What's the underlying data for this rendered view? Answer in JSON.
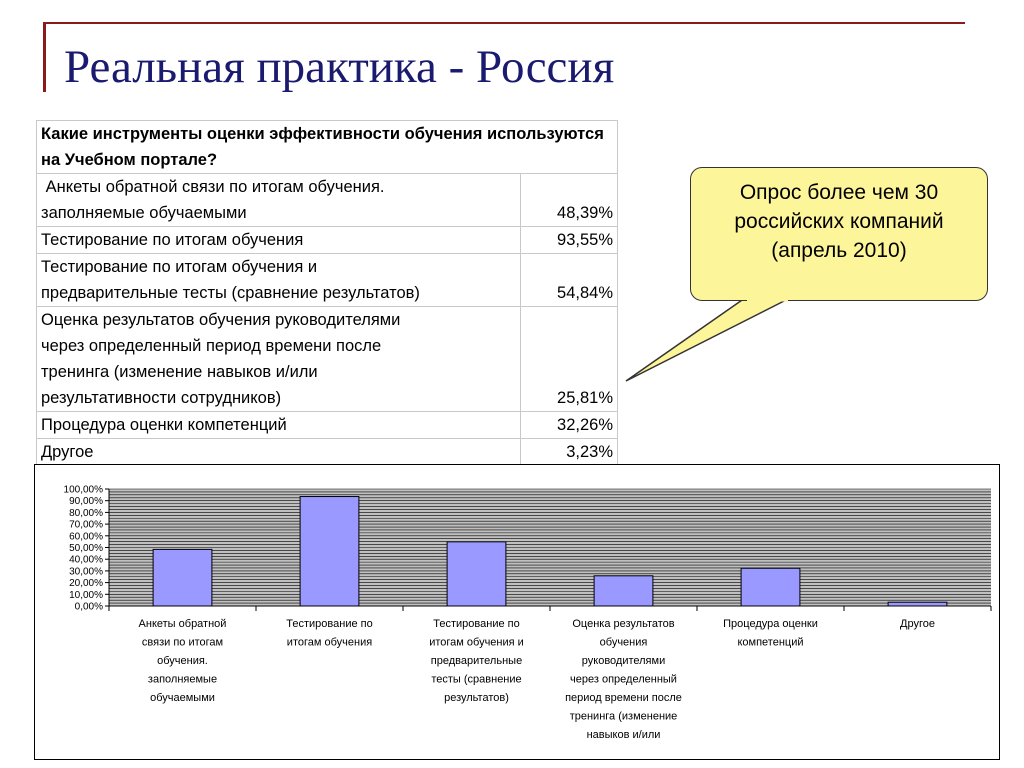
{
  "slide": {
    "title": "Реальная практика - Россия"
  },
  "table": {
    "header": "Какие инструменты оценки эффективности обучения используются на Учебном портале?",
    "rows": [
      {
        "label_lines": [
          " Анкеты обратной связи по итогам обучения.",
          "заполняемые обучаемыми"
        ],
        "value": "48,39%"
      },
      {
        "label_lines": [
          "Тестирование по итогам обучения"
        ],
        "value": "93,55%"
      },
      {
        "label_lines": [
          "Тестирование по итогам обучения и",
          "предварительные тесты (сравнение результатов)"
        ],
        "value": "54,84%"
      },
      {
        "label_lines": [
          "Оценка результатов обучения руководителями",
          "через определенный период времени после",
          "тренинга (изменение навыков и/или",
          "результативности сотрудников)"
        ],
        "value": "25,81%"
      },
      {
        "label_lines": [
          "Процедура оценки компетенций"
        ],
        "value": "32,26%"
      },
      {
        "label_lines": [
          "Другое"
        ],
        "value": "3,23%"
      }
    ]
  },
  "callout": {
    "lines": [
      "Опрос более чем 30",
      "российских компаний",
      "(апрель 2010)"
    ],
    "color": "#fdf59a"
  },
  "chart_data": {
    "type": "bar",
    "categories": [
      [
        "Анкеты обратной",
        "связи по итогам",
        "обучения.",
        "заполняемые",
        "обучаемыми"
      ],
      [
        "Тестирование по",
        "итогам обучения"
      ],
      [
        "Тестирование по",
        "итогам обучения и",
        "предварительные",
        "тесты (сравнение",
        "результатов)"
      ],
      [
        "Оценка результатов",
        "обучения",
        "руководителями",
        "через определенный",
        "период времени после",
        "тренинга (изменение",
        "навыков и/или"
      ],
      [
        "Процедура оценки",
        "компетенций"
      ],
      [
        "Другое"
      ]
    ],
    "values": [
      48.39,
      93.55,
      54.84,
      25.81,
      32.26,
      3.23
    ],
    "ylim": [
      0,
      100
    ],
    "yticks": [
      "0,00%",
      "10,00%",
      "20,00%",
      "30,00%",
      "40,00%",
      "50,00%",
      "60,00%",
      "70,00%",
      "80,00%",
      "90,00%",
      "100,00%"
    ],
    "minor_tick_step": 2.5,
    "grid": true,
    "legend": "none",
    "colors": {
      "bar": "#9999ff",
      "plot_bg": "#c0c0c0",
      "gridline": "#000000"
    }
  }
}
